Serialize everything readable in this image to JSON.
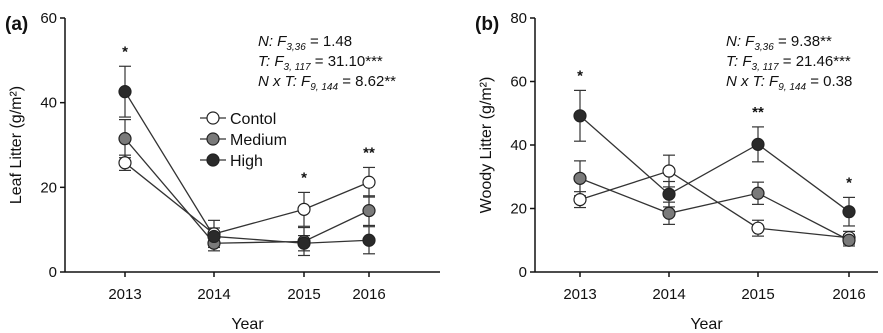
{
  "colors": {
    "axis": "#111111",
    "control_fill": "#ffffff",
    "medium_fill": "#7a7a7a",
    "high_fill": "#2a2a2a",
    "line": "#333333"
  },
  "chart_data": [
    {
      "type": "line",
      "panel_label": "(a)",
      "xlabel": "Year",
      "ylabel": "Leaf Litter (g/m²)",
      "categories": [
        "2013",
        "2014",
        "2015",
        "2016"
      ],
      "ylim": [
        0,
        60
      ],
      "yticks": [
        "0",
        "20",
        "40",
        "60"
      ],
      "legend": {
        "position": "center",
        "entries": [
          "Contol",
          "Medium",
          "High"
        ]
      },
      "series": [
        {
          "name": "Contol",
          "marker": "open-circle",
          "values": [
            25.8,
            9.0,
            14.8,
            21.2
          ],
          "err": [
            1.8,
            3.2,
            4.0,
            3.5
          ]
        },
        {
          "name": "Medium",
          "marker": "gray-circle",
          "values": [
            31.5,
            6.8,
            7.2,
            14.5
          ],
          "err": [
            4.5,
            1.8,
            3.3,
            3.5
          ]
        },
        {
          "name": "High",
          "marker": "black-circle",
          "values": [
            42.6,
            8.4,
            6.8,
            7.5
          ],
          "err": [
            6.0,
            2.0,
            1.8,
            3.2
          ]
        }
      ],
      "significance": [
        "*",
        "",
        "*",
        "**"
      ],
      "stats": [
        {
          "label": "N: F",
          "sub": "3,36",
          "value": " = 1.48"
        },
        {
          "label": "T: F",
          "sub": "3, 117",
          "value": " = 31.10***"
        },
        {
          "label": "N x T: F",
          "sub": "9, 144",
          "value": " = 8.62**"
        }
      ]
    },
    {
      "type": "line",
      "panel_label": "(b)",
      "xlabel": "Year",
      "ylabel": "Woody Litter (g/m²)",
      "categories": [
        "2013",
        "2014",
        "2015",
        "2016"
      ],
      "ylim": [
        0,
        80
      ],
      "yticks": [
        "0",
        "20",
        "40",
        "60",
        "80"
      ],
      "series": [
        {
          "name": "Contol",
          "marker": "open-circle",
          "values": [
            22.8,
            31.8,
            13.8,
            10.8
          ],
          "err": [
            2.5,
            5.0,
            2.5,
            2.0
          ]
        },
        {
          "name": "Medium",
          "marker": "gray-circle",
          "values": [
            29.5,
            18.5,
            24.8,
            10.0
          ],
          "err": [
            5.5,
            3.5,
            3.5,
            1.8
          ]
        },
        {
          "name": "High",
          "marker": "black-circle",
          "values": [
            49.2,
            24.5,
            40.2,
            19.0
          ],
          "err": [
            8.0,
            4.0,
            5.5,
            4.5
          ]
        }
      ],
      "significance": [
        "*",
        "",
        "**",
        "*"
      ],
      "stats": [
        {
          "label": "N: F",
          "sub": "3,36",
          "value": " = 9.38**"
        },
        {
          "label": "T: F",
          "sub": "3, 117",
          "value": " = 21.46***"
        },
        {
          "label": "N x T: F",
          "sub": "9, 144",
          "value": " = 0.38"
        }
      ]
    }
  ]
}
